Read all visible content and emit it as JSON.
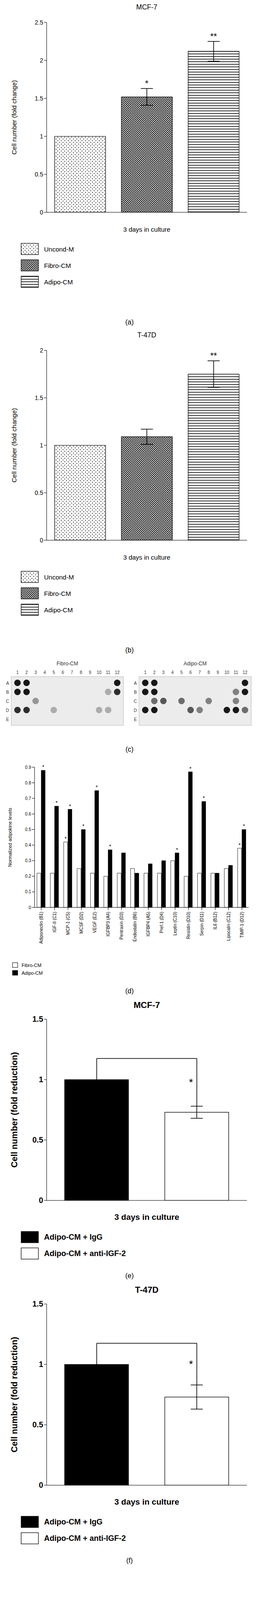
{
  "chart_data": [
    {
      "type": "bar",
      "panel": "(a)",
      "title": "MCF-7",
      "xlabel": "3 days in culture",
      "ylabel": "Cell number (fold change)",
      "categories": [
        "Uncond-M",
        "Fibro-CM",
        "Adipo-CM"
      ],
      "values": [
        1,
        1.52,
        2.12
      ],
      "errors": [
        null,
        0.11,
        0.13
      ],
      "annotations": [
        null,
        "*",
        "**"
      ],
      "ylim": [
        0,
        2.5
      ],
      "yticks": [
        0,
        0.5,
        1,
        1.5,
        2,
        2.5
      ],
      "legend": "bottom"
    },
    {
      "type": "bar",
      "panel": "(b)",
      "title": "T-47D",
      "xlabel": "3 days in culture",
      "ylabel": "Cell number (fold change)",
      "categories": [
        "Uncond-M",
        "Fibro-CM",
        "Adipo-CM"
      ],
      "values": [
        1,
        1.09,
        1.75
      ],
      "errors": [
        null,
        0.08,
        0.14
      ],
      "annotations": [
        null,
        null,
        "**"
      ],
      "ylim": [
        0,
        2
      ],
      "yticks": [
        0,
        0.5,
        1,
        1.5,
        2
      ],
      "legend": "bottom"
    },
    {
      "type": "dot_blot",
      "panel": "(c)",
      "rows": [
        "A",
        "B",
        "C",
        "D",
        "E"
      ],
      "columns": [
        1,
        2,
        3,
        4,
        5,
        6,
        7,
        8,
        9,
        10,
        11,
        12
      ],
      "membranes": [
        {
          "title": "Fibro-CM",
          "spots": [
            [
              0,
              1,
              1
            ],
            [
              0,
              2,
              1
            ],
            [
              1,
              1,
              1
            ],
            [
              1,
              2,
              1
            ],
            [
              3,
              1,
              0.9
            ],
            [
              3,
              2,
              0.9
            ],
            [
              0,
              12,
              1
            ],
            [
              1,
              12,
              0.9
            ],
            [
              2,
              3,
              0.4
            ],
            [
              3,
              5,
              0.3
            ],
            [
              3,
              10,
              0.3
            ],
            [
              3,
              11,
              0.3
            ],
            [
              1,
              11,
              0.3
            ]
          ]
        },
        {
          "title": "Adipo-CM",
          "spots": [
            [
              0,
              1,
              1
            ],
            [
              0,
              2,
              1
            ],
            [
              1,
              1,
              1
            ],
            [
              1,
              2,
              1
            ],
            [
              3,
              1,
              1
            ],
            [
              3,
              2,
              1
            ],
            [
              0,
              12,
              1
            ],
            [
              1,
              12,
              1
            ],
            [
              2,
              2,
              0.6
            ],
            [
              2,
              3,
              0.7
            ],
            [
              2,
              5,
              0.6
            ],
            [
              3,
              6,
              0.7
            ],
            [
              3,
              7,
              0.5
            ],
            [
              2,
              8,
              0.5
            ],
            [
              3,
              10,
              1
            ],
            [
              3,
              11,
              1
            ],
            [
              2,
              11,
              0.5
            ],
            [
              3,
              12,
              0.6
            ],
            [
              1,
              11,
              0.5
            ]
          ]
        }
      ]
    },
    {
      "type": "bar",
      "panel": "(d)",
      "ylabel": "Normalized adipokine levels",
      "categories": [
        "Adiponectin (B1)",
        "IGF-II (C1)",
        "MCP-1 (C5)",
        "MCSF (D2)",
        "VEGF (E2)",
        "IGFBP3 (A4)",
        "Pentraxin (D3)",
        "Endostatin (B6)",
        "IGFBP4 (A5)",
        "Pref-1 (D4)",
        "Leptin (C10)",
        "Resistin (D10)",
        "Serpin (D11)",
        "IL6 (B12)",
        "Lipocalin (C12)",
        "TIMP-1 (D12)"
      ],
      "series": [
        {
          "name": "Fibro-CM",
          "color": "#ffffff",
          "values": [
            0.22,
            0.22,
            0.42,
            0.25,
            0.22,
            0.2,
            0.22,
            0.25,
            0.22,
            0.22,
            0.3,
            0.2,
            0.22,
            0.22,
            0.25,
            0.38
          ],
          "annotations": [
            null,
            null,
            "*",
            null,
            null,
            null,
            null,
            null,
            null,
            null,
            null,
            null,
            null,
            null,
            null,
            "*"
          ]
        },
        {
          "name": "Adipo-CM",
          "color": "#000000",
          "values": [
            0.88,
            0.65,
            0.63,
            0.5,
            0.75,
            0.37,
            0.35,
            0.22,
            0.28,
            0.3,
            0.35,
            0.87,
            0.68,
            0.22,
            0.27,
            0.5
          ],
          "annotations": [
            "*",
            "*",
            "*",
            "*",
            "*",
            "*",
            null,
            null,
            null,
            null,
            "*",
            "*",
            "*",
            null,
            null,
            "*"
          ]
        }
      ],
      "ylim": [
        0,
        0.9
      ],
      "yticks": [
        0,
        0.1,
        0.2,
        0.3,
        0.4,
        0.5,
        0.6,
        0.7,
        0.8,
        0.9
      ],
      "legend": "bottom left"
    },
    {
      "type": "bar",
      "panel": "(e)",
      "title": "MCF-7",
      "xlabel": "3 days in culture",
      "ylabel": "Cell number (fold reduction)",
      "categories": [
        "Adipo-CM + IgG",
        "Adipo-CM + anti-IGF-2"
      ],
      "values": [
        1,
        0.73
      ],
      "errors": [
        null,
        0.05
      ],
      "annotations": [
        null,
        "*"
      ],
      "colors": [
        "#000000",
        "#ffffff"
      ],
      "ylim": [
        0,
        1.5
      ],
      "yticks": [
        0,
        0.5,
        1,
        1.5
      ],
      "legend": "bottom"
    },
    {
      "type": "bar",
      "panel": "(f)",
      "title": "T-47D",
      "xlabel": "3 days in culture",
      "ylabel": "Cell number (fold reduction)",
      "categories": [
        "Adipo-CM + IgG",
        "Adipo-CM + anti-IGF-2"
      ],
      "values": [
        1,
        0.73
      ],
      "errors": [
        null,
        0.1
      ],
      "annotations": [
        null,
        "*"
      ],
      "colors": [
        "#000000",
        "#ffffff"
      ],
      "ylim": [
        0,
        1.5
      ],
      "yticks": [
        0,
        0.5,
        1,
        1.5
      ],
      "legend": "bottom"
    }
  ]
}
